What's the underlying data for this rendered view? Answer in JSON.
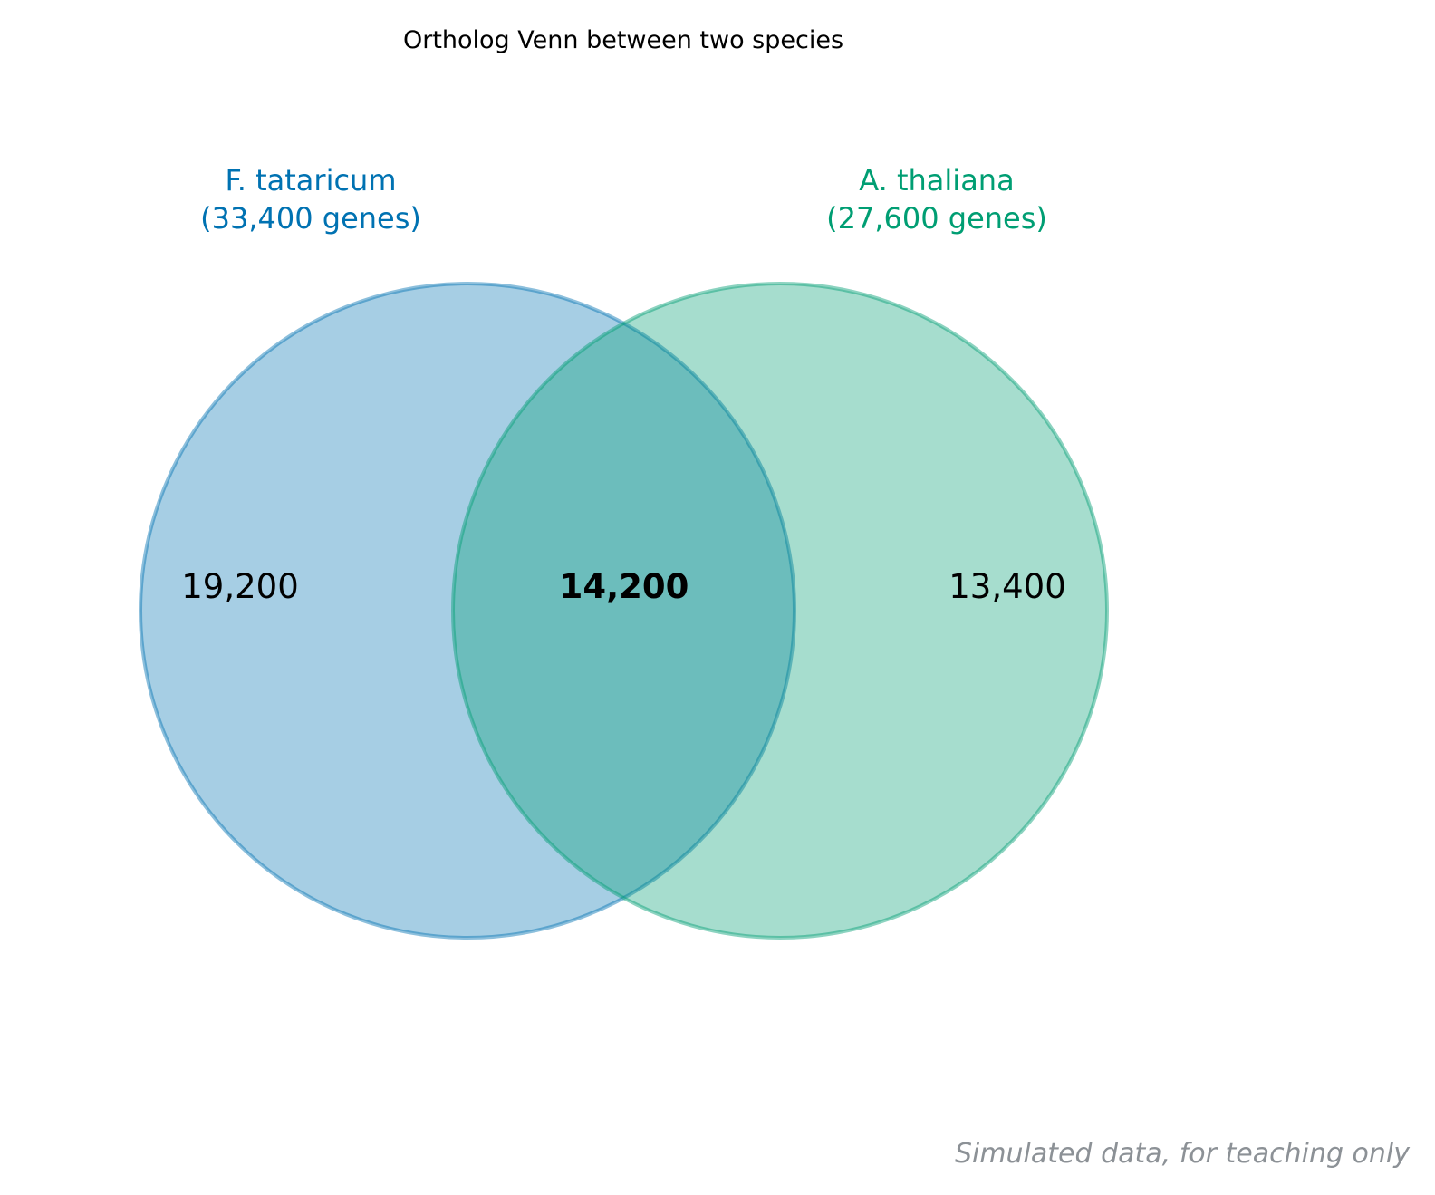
{
  "title": "Ortholog Venn between two species",
  "footnote": "Simulated data, for teaching only",
  "chart_data": {
    "type": "venn",
    "sets": [
      {
        "name": "F. tataricum",
        "total_label": "(33,400 genes)",
        "total": 33400,
        "unique": 19200,
        "unique_label": "19,200",
        "color": "#0072B2"
      },
      {
        "name": "A. thaliana",
        "total_label": "(27,600 genes)",
        "total": 27600,
        "unique": 13400,
        "unique_label": "13,400",
        "color": "#009E73"
      }
    ],
    "intersection": {
      "value": 14200,
      "label": "14,200"
    }
  }
}
